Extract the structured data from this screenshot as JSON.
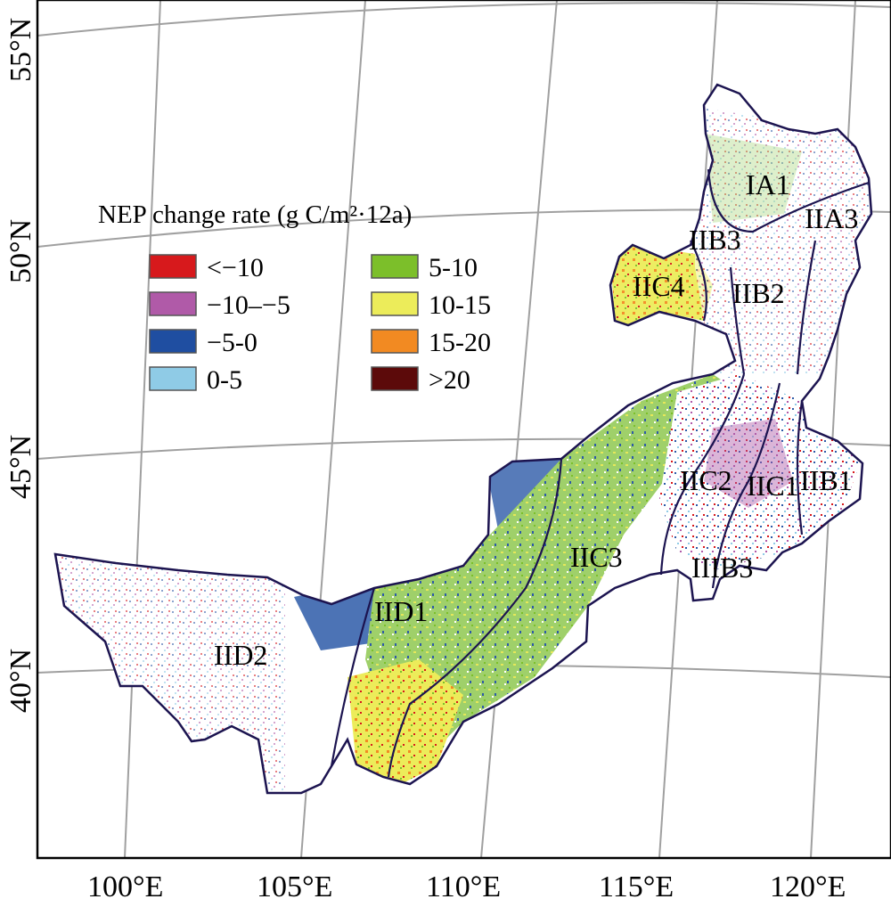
{
  "map": {
    "longitude_labels": [
      "100°E",
      "105°E",
      "110°E",
      "115°E",
      "120°E"
    ],
    "latitude_labels": [
      "55°N",
      "50°N",
      "45°N",
      "40°N"
    ]
  },
  "legend": {
    "title": "NEP change rate (g C/m²·12a)",
    "items": [
      {
        "label": "<−10",
        "color": "#d7191c"
      },
      {
        "label": "−10–−5",
        "color": "#b05aa8"
      },
      {
        "label": "−5-0",
        "color": "#1f4ea1"
      },
      {
        "label": "0-5",
        "color": "#8fcbe6"
      },
      {
        "label": "5-10",
        "color": "#7cbf2a"
      },
      {
        "label": "10-15",
        "color": "#ecec5a"
      },
      {
        "label": "15-20",
        "color": "#f28a22"
      },
      {
        "label": ">20",
        "color": "#5c0a0a"
      }
    ]
  },
  "zones": [
    {
      "label": "IA1"
    },
    {
      "label": "IIA3"
    },
    {
      "label": "IIB3"
    },
    {
      "label": "IIC4"
    },
    {
      "label": "IIB2"
    },
    {
      "label": "IIC2"
    },
    {
      "label": "IIC1"
    },
    {
      "label": "IIB1"
    },
    {
      "label": "IIC3"
    },
    {
      "label": "IIIB3"
    },
    {
      "label": "IID1"
    },
    {
      "label": "IID2"
    }
  ]
}
